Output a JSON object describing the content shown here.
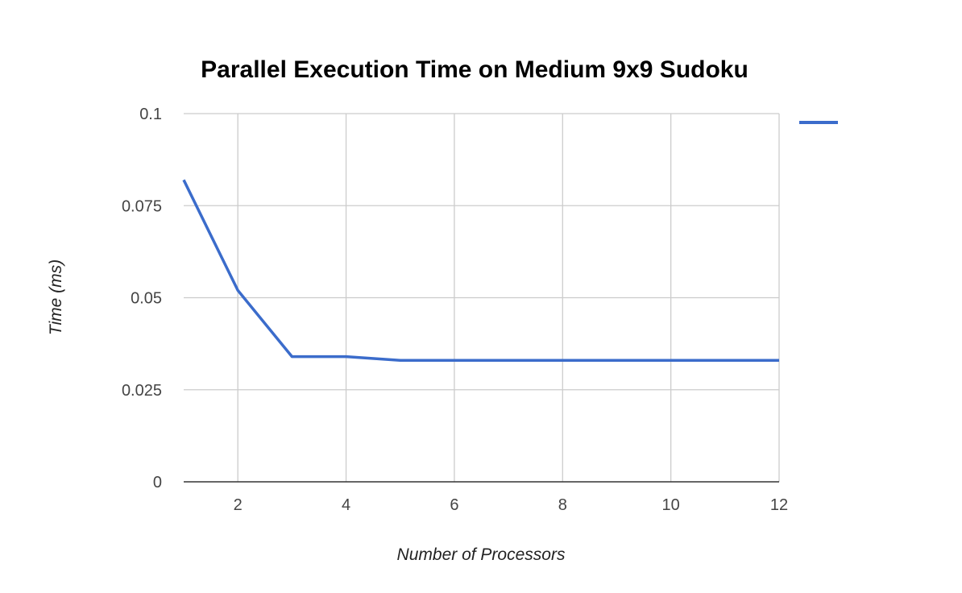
{
  "chart_data": {
    "type": "line",
    "title": "Parallel Execution Time on Medium 9x9 Sudoku",
    "xlabel": "Number of Processors",
    "ylabel": "Time (ms)",
    "xlim": [
      1,
      12
    ],
    "ylim": [
      0,
      0.1
    ],
    "x_ticks": [
      "2",
      "4",
      "6",
      "8",
      "10",
      "12"
    ],
    "y_ticks": [
      "0",
      "0.025",
      "0.05",
      "0.075",
      "0.1"
    ],
    "grid": true,
    "legend": "right",
    "series": [
      {
        "color": "#3b6ccb",
        "x": [
          1,
          2,
          3,
          4,
          5,
          6,
          7,
          8,
          9,
          10,
          11,
          12
        ],
        "values": [
          0.082,
          0.052,
          0.034,
          0.034,
          0.033,
          0.033,
          0.033,
          0.033,
          0.033,
          0.033,
          0.033,
          0.033
        ]
      }
    ]
  }
}
